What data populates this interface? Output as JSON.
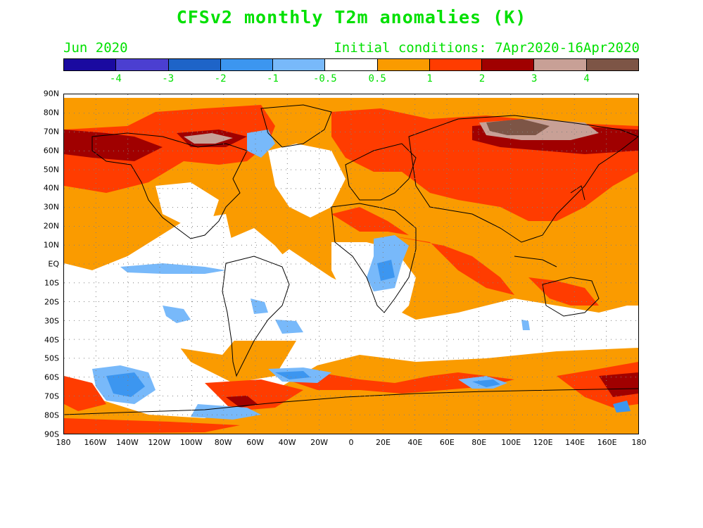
{
  "title": "CFSv2 monthly T2m anomalies (K)",
  "valid_month": "Jun 2020",
  "initial_conditions": "Initial conditions: 7Apr2020-16Apr2020",
  "colorbar": {
    "colors": [
      "#1a0aa0",
      "#4b3fd1",
      "#1e64c8",
      "#3c96f0",
      "#78b9fa",
      "#ffffff",
      "#fa9b00",
      "#ff3c00",
      "#a00000",
      "#c8a096",
      "#7d5546"
    ],
    "labels": [
      "-4",
      "-3",
      "-2",
      "-1",
      "-0.5",
      "0.5",
      "1",
      "2",
      "3",
      "4"
    ]
  },
  "lat_labels": [
    "90N",
    "80N",
    "70N",
    "60N",
    "50N",
    "40N",
    "30N",
    "20N",
    "10N",
    "EQ",
    "10S",
    "20S",
    "30S",
    "40S",
    "50S",
    "60S",
    "70S",
    "80S",
    "90S"
  ],
  "lon_labels": [
    "180",
    "160W",
    "140W",
    "120W",
    "100W",
    "80W",
    "60W",
    "40W",
    "20W",
    "0",
    "20E",
    "40E",
    "60E",
    "80E",
    "100E",
    "120E",
    "140E",
    "160E",
    "180"
  ]
}
